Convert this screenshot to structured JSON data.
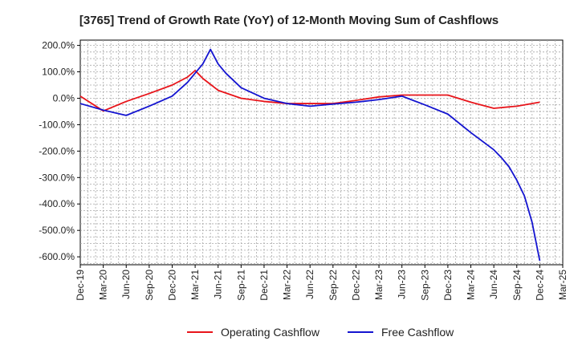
{
  "chart_data": {
    "type": "line",
    "title": "[3765]  Trend of Growth Rate (YoY) of 12-Month Moving Sum of Cashflows",
    "xlabel": "",
    "ylabel": "",
    "ylim": [
      -630,
      220
    ],
    "y_ticks": [
      200,
      100,
      0,
      -100,
      -200,
      -300,
      -400,
      -500,
      -600
    ],
    "y_tick_labels": [
      "200.0%",
      "100.0%",
      "0.0%",
      "-100.0%",
      "-200.0%",
      "-300.0%",
      "-400.0%",
      "-500.0%",
      "-600.0%"
    ],
    "x_ticks": [
      "Dec-19",
      "Mar-20",
      "Jun-20",
      "Sep-20",
      "Dec-20",
      "Mar-21",
      "Jun-21",
      "Sep-21",
      "Dec-21",
      "Mar-22",
      "Jun-22",
      "Sep-22",
      "Dec-22",
      "Mar-23",
      "Jun-23",
      "Sep-23",
      "Dec-23",
      "Mar-24",
      "Jun-24",
      "Sep-24",
      "Dec-24",
      "Mar-25"
    ],
    "grid": true,
    "legend_position": "bottom",
    "series": [
      {
        "name": "Operating Cashflow",
        "color": "#e8141a",
        "points": [
          [
            0,
            8
          ],
          [
            3,
            -48
          ],
          [
            6,
            -12
          ],
          [
            9,
            18
          ],
          [
            12,
            50
          ],
          [
            14,
            80
          ],
          [
            15,
            105
          ],
          [
            16,
            75
          ],
          [
            18,
            30
          ],
          [
            21,
            0
          ],
          [
            24,
            -12
          ],
          [
            27,
            -20
          ],
          [
            30,
            -20
          ],
          [
            33,
            -20
          ],
          [
            36,
            -8
          ],
          [
            39,
            5
          ],
          [
            42,
            12
          ],
          [
            45,
            12
          ],
          [
            48,
            12
          ],
          [
            51,
            -15
          ],
          [
            54,
            -38
          ],
          [
            57,
            -30
          ],
          [
            60,
            -15
          ]
        ]
      },
      {
        "name": "Free Cashflow",
        "color": "#1414d0",
        "points": [
          [
            0,
            -20
          ],
          [
            3,
            -45
          ],
          [
            6,
            -65
          ],
          [
            9,
            -30
          ],
          [
            12,
            8
          ],
          [
            14,
            60
          ],
          [
            15,
            95
          ],
          [
            16,
            130
          ],
          [
            17,
            185
          ],
          [
            18,
            130
          ],
          [
            19,
            95
          ],
          [
            21,
            40
          ],
          [
            24,
            0
          ],
          [
            27,
            -20
          ],
          [
            30,
            -30
          ],
          [
            33,
            -22
          ],
          [
            36,
            -15
          ],
          [
            39,
            -5
          ],
          [
            42,
            8
          ],
          [
            45,
            -25
          ],
          [
            48,
            -60
          ],
          [
            51,
            -130
          ],
          [
            54,
            -195
          ],
          [
            55,
            -225
          ],
          [
            56,
            -260
          ],
          [
            57,
            -310
          ],
          [
            58,
            -370
          ],
          [
            59,
            -470
          ],
          [
            60,
            -615
          ]
        ]
      }
    ]
  }
}
